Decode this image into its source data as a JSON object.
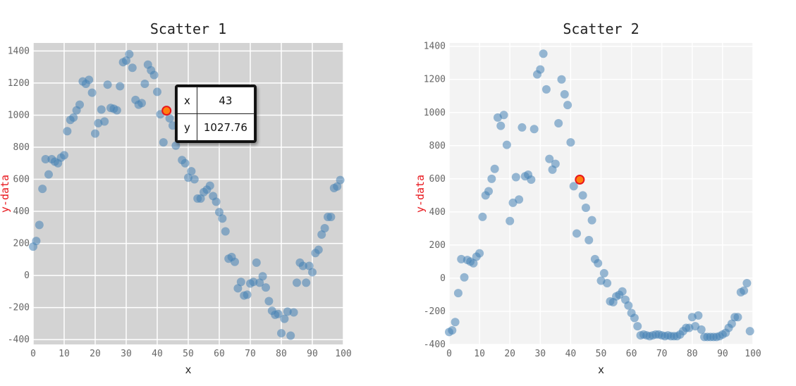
{
  "chart_data": [
    {
      "type": "scatter",
      "title": "Scatter 1",
      "xlabel": "x",
      "ylabel": "y-data",
      "xlim": [
        0,
        100
      ],
      "ylim": [
        -430,
        1450
      ],
      "xticks": [
        0,
        10,
        20,
        30,
        40,
        50,
        60,
        70,
        80,
        90,
        100
      ],
      "yticks": [
        -400,
        -200,
        0,
        200,
        400,
        600,
        800,
        1000,
        1200,
        1400
      ],
      "grid": true,
      "background": "#d3d3d3",
      "grid_color": "#ffffff",
      "marker_color": "#4682b4",
      "highlight_color": "#ff7f0e",
      "highlight": {
        "x": 43,
        "y": 1027.76
      },
      "tooltip": {
        "x_label": "x",
        "y_label": "y",
        "x_value": "43",
        "y_value": "1027.76"
      },
      "x": [
        0,
        1,
        2,
        3,
        4,
        5,
        6,
        7,
        8,
        9,
        10,
        11,
        12,
        13,
        14,
        15,
        16,
        17,
        18,
        19,
        20,
        21,
        22,
        23,
        24,
        25,
        26,
        27,
        28,
        29,
        30,
        31,
        32,
        33,
        34,
        35,
        36,
        37,
        38,
        39,
        40,
        41,
        42,
        44,
        45,
        46,
        47,
        48,
        49,
        50,
        51,
        52,
        53,
        54,
        55,
        56,
        57,
        58,
        59,
        60,
        61,
        62,
        63,
        64,
        65,
        66,
        67,
        68,
        69,
        70,
        71,
        72,
        73,
        74,
        75,
        76,
        77,
        78,
        79,
        80,
        81,
        82,
        83,
        84,
        85,
        86,
        87,
        88,
        89,
        90,
        91,
        92,
        93,
        94,
        95,
        96,
        97,
        98,
        99
      ],
      "y": [
        180,
        215,
        315,
        540,
        725,
        630,
        725,
        710,
        700,
        735,
        750,
        900,
        970,
        985,
        1030,
        1065,
        1210,
        1195,
        1220,
        1140,
        885,
        950,
        1035,
        960,
        1190,
        1045,
        1040,
        1030,
        1180,
        1330,
        1340,
        1380,
        1295,
        1095,
        1065,
        1075,
        1195,
        1315,
        1280,
        1250,
        1145,
        1005,
        830,
        980,
        935,
        810,
        860,
        720,
        700,
        610,
        650,
        600,
        480,
        480,
        520,
        535,
        560,
        495,
        460,
        395,
        355,
        275,
        105,
        115,
        85,
        -80,
        -40,
        -125,
        -120,
        -50,
        -40,
        80,
        -45,
        -5,
        -75,
        -160,
        -220,
        -245,
        -240,
        -360,
        -270,
        -225,
        -375,
        -230,
        -45,
        80,
        60,
        -45,
        60,
        20,
        140,
        160,
        255,
        295,
        365,
        365,
        545,
        555,
        595
      ]
    },
    {
      "type": "scatter",
      "title": "Scatter 2",
      "xlabel": "x",
      "ylabel": "y-data",
      "xlim": [
        0,
        100
      ],
      "ylim": [
        -400,
        1420
      ],
      "xticks": [
        0,
        10,
        20,
        30,
        40,
        50,
        60,
        70,
        80,
        90,
        100
      ],
      "yticks": [
        -400,
        -200,
        0,
        200,
        400,
        600,
        800,
        1000,
        1200,
        1400
      ],
      "grid": true,
      "background": "#f3f3f3",
      "grid_color": "#ffffff",
      "marker_color": "#4682b4",
      "highlight_color": "#ff7f0e",
      "highlight": {
        "x": 43,
        "y": 595
      },
      "x": [
        0,
        1,
        2,
        3,
        4,
        5,
        6,
        7,
        8,
        9,
        10,
        11,
        12,
        13,
        14,
        15,
        16,
        17,
        18,
        19,
        20,
        21,
        22,
        23,
        24,
        25,
        26,
        27,
        28,
        29,
        30,
        31,
        32,
        33,
        34,
        35,
        36,
        37,
        38,
        39,
        40,
        41,
        42,
        44,
        45,
        46,
        47,
        48,
        49,
        50,
        51,
        52,
        53,
        54,
        55,
        56,
        57,
        58,
        59,
        60,
        61,
        62,
        63,
        64,
        65,
        66,
        67,
        68,
        69,
        70,
        71,
        72,
        73,
        74,
        75,
        76,
        77,
        78,
        79,
        80,
        81,
        82,
        83,
        84,
        85,
        86,
        87,
        88,
        89,
        90,
        91,
        92,
        93,
        94,
        95,
        96,
        97,
        98,
        99
      ],
      "y": [
        -325,
        -315,
        -265,
        -90,
        115,
        5,
        110,
        100,
        90,
        130,
        150,
        370,
        500,
        525,
        600,
        660,
        970,
        920,
        985,
        805,
        345,
        455,
        610,
        475,
        910,
        615,
        625,
        595,
        900,
        1230,
        1260,
        1355,
        1140,
        720,
        655,
        690,
        935,
        1200,
        1110,
        1045,
        820,
        555,
        270,
        500,
        425,
        230,
        350,
        115,
        90,
        -15,
        30,
        -30,
        -140,
        -145,
        -110,
        -100,
        -80,
        -130,
        -165,
        -210,
        -240,
        -290,
        -345,
        -340,
        -345,
        -350,
        -345,
        -340,
        -340,
        -345,
        -350,
        -345,
        -350,
        -350,
        -350,
        -340,
        -320,
        -300,
        -300,
        -235,
        -290,
        -225,
        -310,
        -355,
        -355,
        -355,
        -355,
        -355,
        -350,
        -340,
        -330,
        -300,
        -275,
        -235,
        -235,
        -85,
        -75,
        -30,
        -320
      ]
    }
  ]
}
